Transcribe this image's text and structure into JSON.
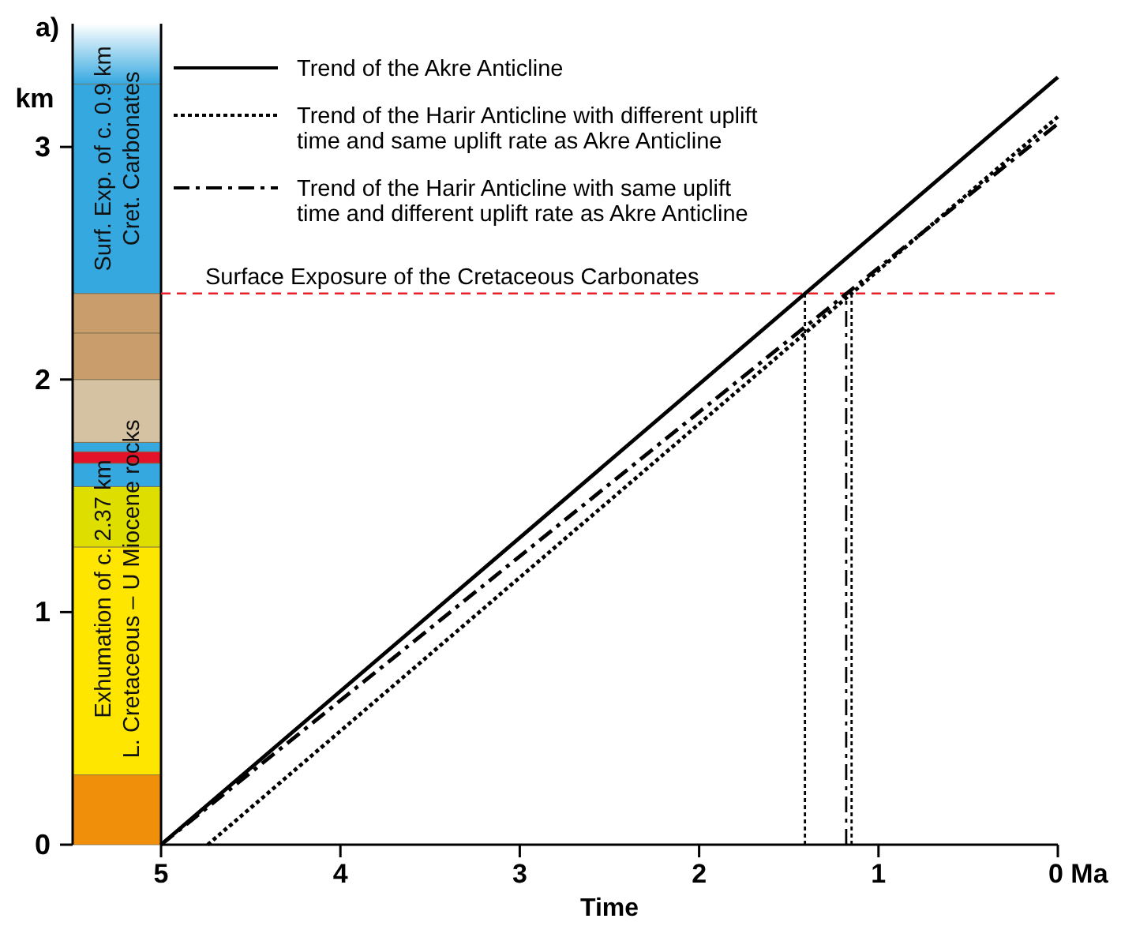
{
  "chart_data": {
    "type": "line",
    "title": "a)",
    "xlabel": "Time",
    "ylabel": "km",
    "xlim": [
      5,
      0
    ],
    "xticks": [
      5,
      4,
      3,
      2,
      1,
      {
        "value": 0,
        "label": "0 Ma"
      }
    ],
    "ylim": [
      0,
      3.53
    ],
    "yticks": [
      0,
      1,
      2,
      3
    ],
    "legend": "top left",
    "grid": false,
    "series": [
      {
        "name": "Trend of the Akre Anticline",
        "color": "#000000",
        "line_style": "solid",
        "x": [
          5,
          0
        ],
        "values": [
          0,
          3.3
        ]
      },
      {
        "name": "Trend of the Harir Anticline with different uplift\ntime and same uplift rate as Akre Anticline",
        "color": "#000000",
        "line_style": "dotted",
        "x": [
          4.74,
          0
        ],
        "values": [
          0,
          3.13
        ]
      },
      {
        "name": "Trend of the Harir Anticline with same uplift\ntime and different uplift rate as Akre Anticline",
        "color": "#000000",
        "line_style": "dashdot",
        "x": [
          5,
          0
        ],
        "values": [
          0,
          3.1
        ]
      },
      {
        "color": "#000000",
        "line_style": "dotted",
        "x": [
          1.41,
          1.41
        ],
        "values": [
          0,
          2.37
        ]
      },
      {
        "color": "#000000",
        "line_style": "dashdot",
        "x": [
          1.18,
          1.18
        ],
        "values": [
          0,
          2.37
        ]
      },
      {
        "color": "#000000",
        "line_style": "dotted",
        "x": [
          1.15,
          1.15
        ],
        "values": [
          0,
          2.37
        ]
      }
    ],
    "ref_lines": [
      {
        "axis": "y",
        "value": 2.37,
        "label": "Surface Exposure of the Cretaceous Carbonates",
        "color": "#e8202a",
        "line_style": "dashed"
      }
    ],
    "annotations": [
      "Surf. Exp. of c. 0.9 km\nCret. Carbonates",
      "Exhumation of c. 2.37 km\nL. Cretaceous – U Miocene rocks"
    ]
  }
}
